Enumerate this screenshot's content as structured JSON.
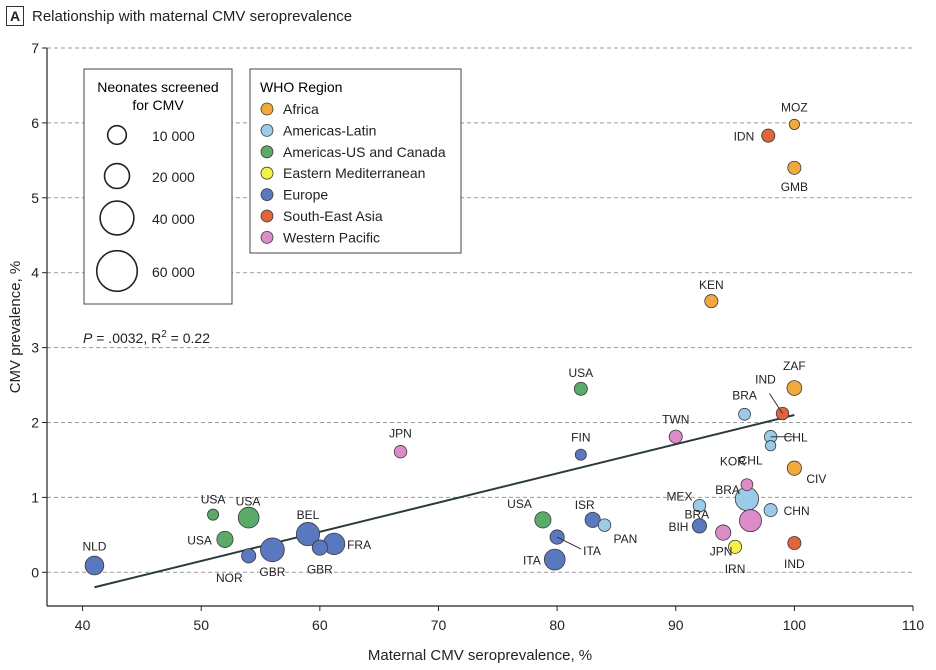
{
  "panel": {
    "letter": "A",
    "title": "Relationship with maternal CMV seroprevalence"
  },
  "chart_data": {
    "type": "scatter",
    "title": "Relationship with maternal CMV seroprevalence",
    "xlabel": "Maternal CMV seroprevalence, %",
    "ylabel": "CMV prevalence, %",
    "xlim": [
      37,
      110
    ],
    "ylim": [
      -0.45,
      7
    ],
    "xticks": [
      40,
      50,
      60,
      70,
      80,
      90,
      100,
      110
    ],
    "yticks": [
      0,
      1,
      2,
      3,
      4,
      5,
      6,
      7
    ],
    "grid": "dashed horizontal",
    "stats": {
      "p_prefix": "P",
      "p_text": " = .0032, R",
      "r_sup": "2",
      "r_text": " = 0.22"
    },
    "regression_line": {
      "x": [
        41,
        100
      ],
      "y": [
        -0.2,
        2.1
      ]
    },
    "region_legend": {
      "title": "WHO Region",
      "placement": "top-left",
      "items": [
        {
          "name": "Africa",
          "color": "#f0a93a"
        },
        {
          "name": "Americas-Latin",
          "color": "#9ccbea"
        },
        {
          "name": "Americas-US and Canada",
          "color": "#5aaa6a"
        },
        {
          "name": "Eastern Mediterranean",
          "color": "#f5f04a"
        },
        {
          "name": "Europe",
          "color": "#5a78bf"
        },
        {
          "name": "South-East Asia",
          "color": "#e2643a"
        },
        {
          "name": "Western Pacific",
          "color": "#dc8cc8"
        }
      ]
    },
    "size_legend": {
      "title_line1": "Neonates screened",
      "title_line2": "for CMV",
      "placement": "top-left",
      "items": [
        {
          "label": "10 000",
          "value": 10000
        },
        {
          "label": "20 000",
          "value": 20000
        },
        {
          "label": "40 000",
          "value": 40000
        },
        {
          "label": "60 000",
          "value": 60000
        }
      ]
    },
    "points": [
      {
        "label": "MOZ",
        "region": "Africa",
        "x": 100,
        "y": 5.98,
        "n": 2000
      },
      {
        "label": "IDN",
        "region": "South-East Asia",
        "x": 97.8,
        "y": 5.83,
        "n": 4000
      },
      {
        "label": "GMB",
        "region": "Africa",
        "x": 100,
        "y": 5.4,
        "n": 4000
      },
      {
        "label": "KEN",
        "region": "Africa",
        "x": 93,
        "y": 3.62,
        "n": 4000
      },
      {
        "label": "ZAF",
        "region": "Africa",
        "x": 100,
        "y": 2.46,
        "n": 5500
      },
      {
        "label": "IND",
        "region": "South-East Asia",
        "x": 99,
        "y": 2.12,
        "n": 3500
      },
      {
        "label": "USA",
        "region": "Americas-US and Canada",
        "x": 82,
        "y": 2.45,
        "n": 4000
      },
      {
        "label": "BRA",
        "region": "Americas-Latin",
        "x": 95.8,
        "y": 2.11,
        "n": 3000
      },
      {
        "label": "TWN",
        "region": "Western Pacific",
        "x": 90,
        "y": 1.81,
        "n": 4000
      },
      {
        "label": "CHL",
        "region": "Americas-Latin",
        "x": 98,
        "y": 1.81,
        "n": 3500
      },
      {
        "label": "CHL",
        "region": "Americas-Latin",
        "x": 98,
        "y": 1.69,
        "n": 2000
      },
      {
        "label": "JPN",
        "region": "Western Pacific",
        "x": 66.8,
        "y": 1.61,
        "n": 3500
      },
      {
        "label": "FIN",
        "region": "Europe",
        "x": 82,
        "y": 1.57,
        "n": 2500
      },
      {
        "label": "CIV",
        "region": "Africa",
        "x": 100,
        "y": 1.39,
        "n": 5000
      },
      {
        "label": "KOR",
        "region": "Western Pacific",
        "x": 96,
        "y": 1.17,
        "n": 3000
      },
      {
        "label": "MEX",
        "region": "Americas-Latin",
        "x": 92,
        "y": 0.89,
        "n": 3500
      },
      {
        "label": "BRA",
        "region": "Americas-Latin",
        "x": 96,
        "y": 0.98,
        "n": 17000
      },
      {
        "label": "CHN",
        "region": "Americas-Latin",
        "x": 98,
        "y": 0.83,
        "n": 4000
      },
      {
        "label": "BIH",
        "region": "Europe",
        "x": 92,
        "y": 0.62,
        "n": 5000
      },
      {
        "label": "BRA",
        "region": "Western Pacific",
        "x": 94,
        "y": 0.53,
        "n": 6000
      },
      {
        "label": "JPN",
        "region": "Western Pacific",
        "x": 96.3,
        "y": 0.69,
        "n": 15000
      },
      {
        "label": "IRN",
        "region": "Eastern Mediterranean",
        "x": 95,
        "y": 0.34,
        "n": 4000
      },
      {
        "label": "IND",
        "region": "South-East Asia",
        "x": 100,
        "y": 0.39,
        "n": 4000
      },
      {
        "label": "USA",
        "region": "Americas-US and Canada",
        "x": 78.8,
        "y": 0.7,
        "n": 7000
      },
      {
        "label": "ISR",
        "region": "Europe",
        "x": 83,
        "y": 0.7,
        "n": 6000
      },
      {
        "label": "PAN",
        "region": "Americas-Latin",
        "x": 84,
        "y": 0.63,
        "n": 3500
      },
      {
        "label": "ITA",
        "region": "Europe",
        "x": 80,
        "y": 0.47,
        "n": 5000
      },
      {
        "label": "ITA",
        "region": "Europe",
        "x": 79.8,
        "y": 0.17,
        "n": 13000
      },
      {
        "label": "USA",
        "region": "Americas-US and Canada",
        "x": 51,
        "y": 0.77,
        "n": 2500
      },
      {
        "label": "USA",
        "region": "Americas-US and Canada",
        "x": 54,
        "y": 0.73,
        "n": 13000
      },
      {
        "label": "USA",
        "region": "Americas-US and Canada",
        "x": 52,
        "y": 0.44,
        "n": 7000
      },
      {
        "label": "BEL",
        "region": "Europe",
        "x": 59,
        "y": 0.51,
        "n": 17000
      },
      {
        "label": "NOR",
        "region": "Europe",
        "x": 54,
        "y": 0.22,
        "n": 5000
      },
      {
        "label": "GBR",
        "region": "Europe",
        "x": 56,
        "y": 0.3,
        "n": 18000
      },
      {
        "label": "GBR",
        "region": "Europe",
        "x": 60,
        "y": 0.33,
        "n": 6000
      },
      {
        "label": "FRA",
        "region": "Europe",
        "x": 61.2,
        "y": 0.38,
        "n": 14000
      },
      {
        "label": "NLD",
        "region": "Europe",
        "x": 41,
        "y": 0.09,
        "n": 10000
      }
    ]
  }
}
